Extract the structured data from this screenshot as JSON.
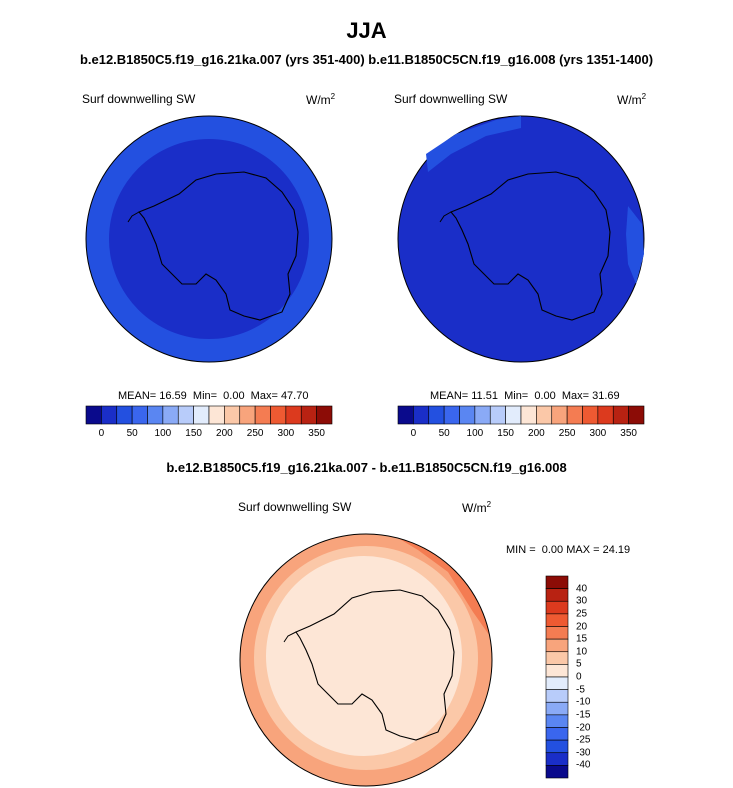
{
  "page": {
    "title": "JJA",
    "subtitle": "b.e12.B1850C5.f19_g16.21ka.007 (yrs 351-400)  b.e11.B1850C5CN.f19_g16.008 (yrs 1351-1400)",
    "diff_title": "b.e12.B1850C5.f19_g16.21ka.007 - b.e11.B1850C5CN.f19_g16.008"
  },
  "left_panel": {
    "variable": "Surf downwelling SW",
    "units_base": "W/m",
    "units_exp": "2",
    "stats": "MEAN= 16.59  Min=  0.00  Max= 47.70"
  },
  "right_panel": {
    "variable": "Surf downwelling SW",
    "units_base": "W/m",
    "units_exp": "2",
    "stats": "MEAN= 11.51  Min=  0.00  Max= 31.69"
  },
  "diff_panel": {
    "variable": "Surf downwelling SW",
    "units_base": "W/m",
    "units_exp": "2",
    "stats": "MIN =  0.00 MAX = 24.19"
  },
  "abs_colorbar": {
    "colors": [
      "#0a0a8c",
      "#1a2ec8",
      "#2350e0",
      "#3a66ee",
      "#5a86f2",
      "#8aaaf6",
      "#b8ccfa",
      "#e2ecfc",
      "#fde6d6",
      "#fbc8a8",
      "#f8a47c",
      "#f47c52",
      "#ee5a32",
      "#dc3a1e",
      "#b82212",
      "#8c0c06"
    ],
    "labels": [
      "0",
      "50",
      "100",
      "150",
      "200",
      "250",
      "300",
      "350"
    ]
  },
  "diff_colorbar": {
    "colors_top_to_bottom": [
      "#8c0c06",
      "#b82212",
      "#dc3a1e",
      "#ee5a32",
      "#f47c52",
      "#f8a47c",
      "#fbc8a8",
      "#fde6d6",
      "#e2ecfc",
      "#b8ccfa",
      "#8aaaf6",
      "#5a86f2",
      "#3a66ee",
      "#2350e0",
      "#1a2ec8",
      "#0a0a8c"
    ],
    "labels": [
      "40",
      "30",
      "25",
      "20",
      "15",
      "10",
      "5",
      "0",
      "-5",
      "-10",
      "-15",
      "-20",
      "-25",
      "-30",
      "-40"
    ]
  },
  "map_colors": {
    "ocean_outer": "#2350e0",
    "ocean_inner": "#1a2ec8",
    "diff_low": "#fde6d6",
    "diff_mid": "#fbc8a8",
    "diff_high": "#f8a47c",
    "diff_top": "#f47c52"
  }
}
